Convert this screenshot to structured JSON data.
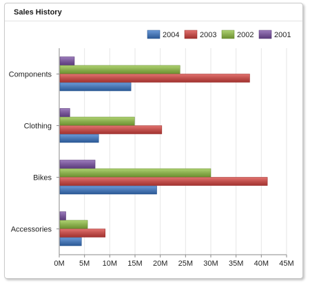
{
  "panel": {
    "title": "Sales History"
  },
  "chart_data": {
    "type": "bar",
    "orientation": "horizontal",
    "title": "",
    "xlabel": "",
    "ylabel": "",
    "categories": [
      "Components",
      "Clothing",
      "Bikes",
      "Accessories"
    ],
    "series": [
      {
        "name": "2004",
        "color": "#4a78b5",
        "values": [
          14.2,
          7.8,
          19.3,
          4.4
        ]
      },
      {
        "name": "2003",
        "color": "#c0504d",
        "values": [
          37.7,
          20.3,
          41.2,
          9.1
        ]
      },
      {
        "name": "2002",
        "color": "#8cb050",
        "values": [
          23.9,
          14.9,
          30.0,
          5.6
        ]
      },
      {
        "name": "2001",
        "color": "#7a5a9a",
        "values": [
          3.0,
          2.1,
          7.1,
          1.3
        ]
      }
    ],
    "xlim": [
      0,
      45
    ],
    "xticks": [
      "0M",
      "5M",
      "10M",
      "15M",
      "20M",
      "25M",
      "30M",
      "35M",
      "40M",
      "45M"
    ],
    "grid": true,
    "legend_position": "top-right"
  }
}
